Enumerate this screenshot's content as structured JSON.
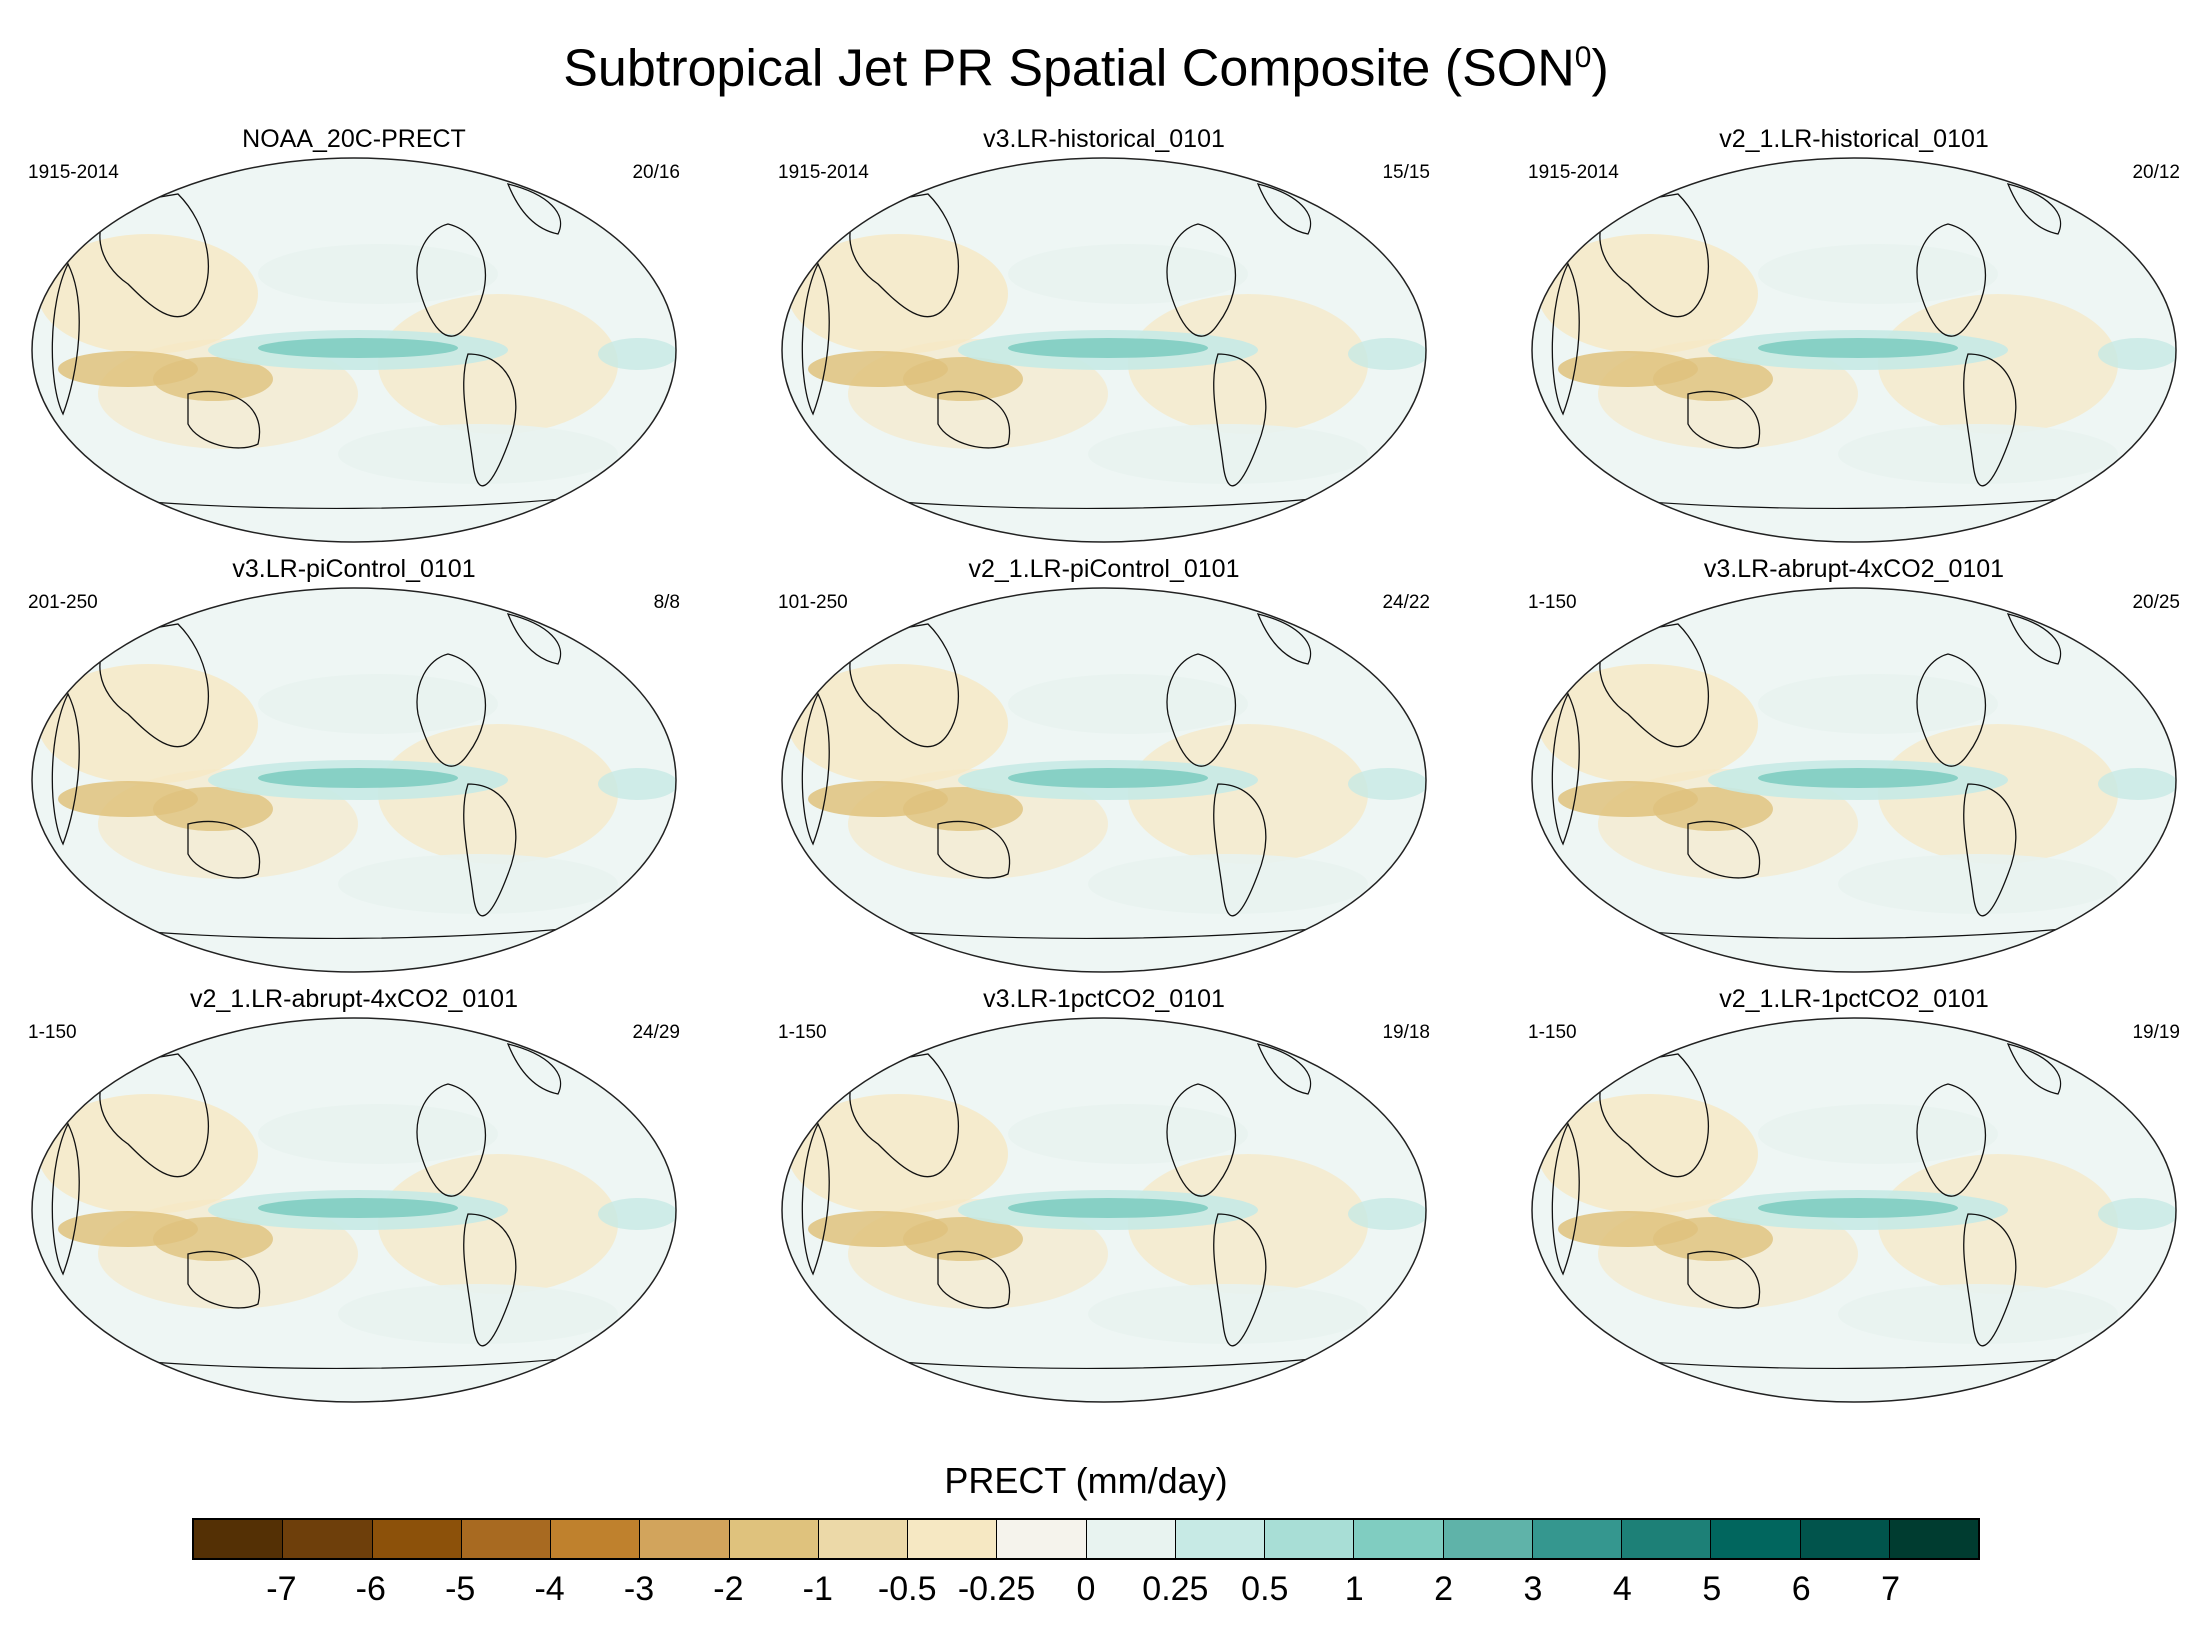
{
  "figure": {
    "title": "Subtropical Jet PR Spatial Composite (SON",
    "title_sup": "0",
    "title_close": ")"
  },
  "panels": [
    {
      "title": "NOAA_20C-PRECT",
      "years": "1915-2014",
      "count": "20/16"
    },
    {
      "title": "v3.LR-historical_0101",
      "years": "1915-2014",
      "count": "15/15"
    },
    {
      "title": "v2_1.LR-historical_0101",
      "years": "1915-2014",
      "count": "20/12"
    },
    {
      "title": "v3.LR-piControl_0101",
      "years": "201-250",
      "count": "8/8"
    },
    {
      "title": "v2_1.LR-piControl_0101",
      "years": "101-250",
      "count": "24/22"
    },
    {
      "title": "v3.LR-abrupt-4xCO2_0101",
      "years": "1-150",
      "count": "20/25"
    },
    {
      "title": "v2_1.LR-abrupt-4xCO2_0101",
      "years": "1-150",
      "count": "24/29"
    },
    {
      "title": "v3.LR-1pctCO2_0101",
      "years": "1-150",
      "count": "19/18"
    },
    {
      "title": "v2_1.LR-1pctCO2_0101",
      "years": "1-150",
      "count": "19/19"
    }
  ],
  "colorbar": {
    "label": "PRECT (mm/day)",
    "ticks": [
      "-7",
      "-6",
      "-5",
      "-4",
      "-3",
      "-2",
      "-1",
      "-0.5",
      "-0.25",
      "0",
      "0.25",
      "0.5",
      "1",
      "2",
      "3",
      "4",
      "5",
      "6",
      "7"
    ],
    "colors": [
      "#543005",
      "#6e3f0b",
      "#8c510a",
      "#a86a21",
      "#bf812d",
      "#d2a45c",
      "#dfc27d",
      "#ecd9a8",
      "#f6e8c3",
      "#f5f3ec",
      "#e8f3f0",
      "#c7eae5",
      "#a8ded6",
      "#80cdc1",
      "#5fb3a9",
      "#35978f",
      "#1d8077",
      "#01665e",
      "#01544c",
      "#003c30"
    ]
  }
}
